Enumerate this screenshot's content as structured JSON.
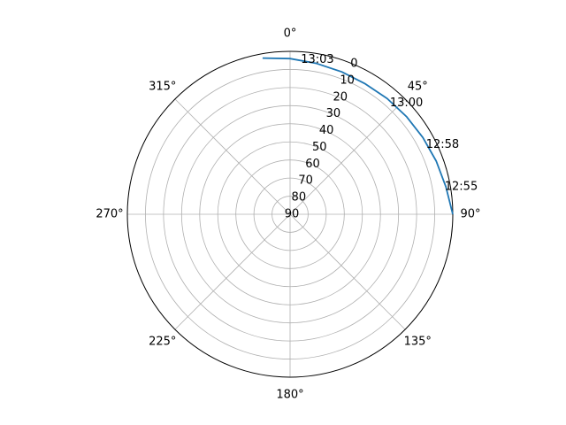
{
  "chart_data": {
    "type": "line",
    "projection": "polar",
    "theta_zero_location": "top",
    "theta_direction": "clockwise",
    "angle_ticks": [
      {
        "deg": 0,
        "label": "0°"
      },
      {
        "deg": 45,
        "label": "45°"
      },
      {
        "deg": 90,
        "label": "90°"
      },
      {
        "deg": 135,
        "label": "135°"
      },
      {
        "deg": 180,
        "label": "180°"
      },
      {
        "deg": 225,
        "label": "225°"
      },
      {
        "deg": 270,
        "label": "270°"
      },
      {
        "deg": 315,
        "label": "315°"
      }
    ],
    "radial_ticks": [
      {
        "value": 0,
        "label": "0"
      },
      {
        "value": 10,
        "label": "10"
      },
      {
        "value": 20,
        "label": "20"
      },
      {
        "value": 30,
        "label": "30"
      },
      {
        "value": 40,
        "label": "40"
      },
      {
        "value": 50,
        "label": "50"
      },
      {
        "value": 60,
        "label": "60"
      },
      {
        "value": 70,
        "label": "70"
      },
      {
        "value": 80,
        "label": "80"
      },
      {
        "value": 90,
        "label": "90"
      }
    ],
    "r_axis": {
      "outer_value": 0,
      "center_value": 90,
      "inverted": true
    },
    "grid": true,
    "series": [
      {
        "color": "#1f77b4",
        "points": [
          {
            "az": 90,
            "alt": 0
          },
          {
            "az": 80,
            "alt": 2.5
          },
          {
            "az": 70,
            "alt": 4
          },
          {
            "az": 60,
            "alt": 5.2
          },
          {
            "az": 50,
            "alt": 6
          },
          {
            "az": 40,
            "alt": 6.5
          },
          {
            "az": 30,
            "alt": 6.8
          },
          {
            "az": 20,
            "alt": 6.3
          },
          {
            "az": 10,
            "alt": 5.4
          },
          {
            "az": 0,
            "alt": 4
          },
          {
            "az": -10,
            "alt": 2.4
          }
        ]
      }
    ],
    "annotations": [
      {
        "label": "12:55",
        "az": 80,
        "alt": 3.2
      },
      {
        "label": "12:58",
        "az": 63,
        "alt": 5.6
      },
      {
        "label": "13:00",
        "az": 42,
        "alt": 7.5
      },
      {
        "label": "13:03",
        "az": 4,
        "alt": 4.5
      }
    ]
  }
}
